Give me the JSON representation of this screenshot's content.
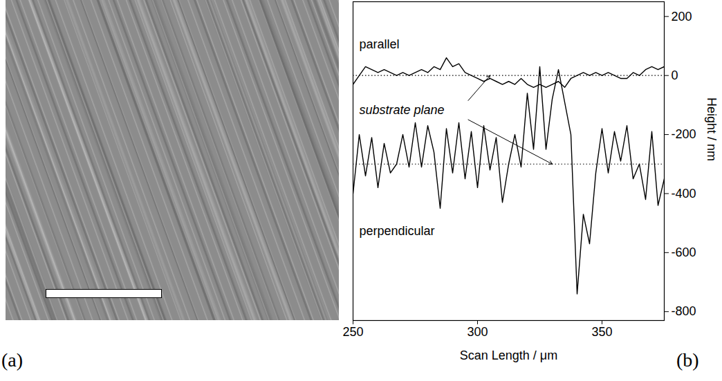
{
  "image_panel": {
    "label": "(a)"
  },
  "chart_data": {
    "type": "line",
    "panel_label": "(b)",
    "xlabel": "Scan Length / μm",
    "ylabel": "Height / nm",
    "xlim": [
      250,
      375
    ],
    "xticks": [
      250,
      300,
      350
    ],
    "ylim": [
      -830,
      250
    ],
    "yticks": [
      -800,
      -600,
      -400,
      -200,
      0,
      200
    ],
    "x": [
      250,
      252.5,
      255,
      257.5,
      260,
      262.5,
      265,
      267.5,
      270,
      272.5,
      275,
      277.5,
      280,
      282.5,
      285,
      287.5,
      290,
      292.5,
      295,
      297.5,
      300,
      302.5,
      305,
      307.5,
      310,
      312.5,
      315,
      317.5,
      320,
      322.5,
      325,
      327.5,
      330,
      332.5,
      335,
      337.5,
      340,
      342.5,
      345,
      347.5,
      350,
      352.5,
      355,
      357.5,
      360,
      362.5,
      365,
      367.5,
      370,
      372.5,
      375
    ],
    "series": [
      {
        "name": "parallel",
        "color": "#000000",
        "values": [
          -30,
          0,
          30,
          20,
          10,
          20,
          10,
          0,
          10,
          0,
          10,
          20,
          10,
          30,
          20,
          60,
          30,
          40,
          10,
          0,
          -10,
          -20,
          -10,
          -20,
          -30,
          -20,
          -30,
          -10,
          -30,
          -40,
          -30,
          -40,
          -30,
          -20,
          -40,
          -10,
          0,
          10,
          0,
          10,
          0,
          10,
          0,
          -10,
          -10,
          10,
          0,
          20,
          30,
          20,
          30
        ]
      },
      {
        "name": "perpendicular",
        "color": "#000000",
        "values": [
          -400,
          -200,
          -340,
          -210,
          -380,
          -230,
          -330,
          -300,
          -200,
          -310,
          -160,
          -310,
          -170,
          -260,
          -450,
          -180,
          -330,
          -160,
          -350,
          -190,
          -380,
          -170,
          -320,
          -210,
          -430,
          -300,
          -200,
          -310,
          -60,
          -250,
          30,
          -250,
          -80,
          20,
          -90,
          -200,
          -740,
          -470,
          -570,
          -330,
          -180,
          -330,
          -190,
          -290,
          -170,
          -350,
          -300,
          -420,
          -190,
          -440,
          -350
        ]
      }
    ],
    "annotation": "substrate plane",
    "substrate_plane": [
      0,
      -300
    ]
  }
}
